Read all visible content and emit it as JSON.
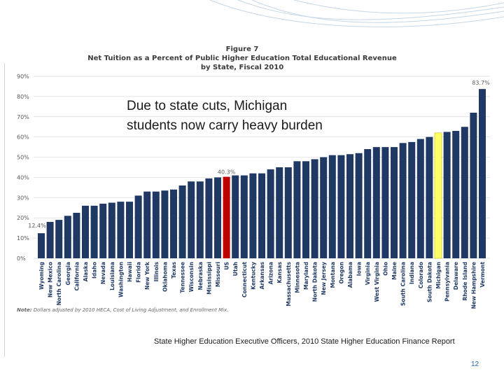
{
  "figure": {
    "label": "Figure 7",
    "title_line1": "Net Tuition as a Percent of Public Higher Education Total Educational Revenue",
    "title_line2": "by State, Fiscal 2010"
  },
  "callout": {
    "line1": "Due to state cuts, Michigan",
    "line2": "students now carry heavy burden"
  },
  "note": {
    "label": "Note:",
    "text": "Dollars adjusted by 2010 HECA, Cost of Living Adjustment, and Enrollment Mix."
  },
  "source": "State Higher Education Executive Officers, 2010 State Higher Education Finance Report",
  "page_number": "12",
  "colors": {
    "bar": "#1f3864",
    "us_bar": "#c00000",
    "michigan_bar": "#ffff66",
    "grid": "#d9d9d9",
    "axis_text": "#595959"
  },
  "chart_data": {
    "type": "bar",
    "title": "Net Tuition as a Percent of Public Higher Education Total Educational Revenue by State, Fiscal 2010",
    "ylim": [
      0,
      90
    ],
    "y_ticks": [
      "0%",
      "10%",
      "20%",
      "30%",
      "40%",
      "50%",
      "60%",
      "70%",
      "80%",
      "90%"
    ],
    "grid": true,
    "categories": [
      "Wyoming",
      "New Mexico",
      "North Carolina",
      "Georgia",
      "California",
      "Alaska",
      "Idaho",
      "Nevada",
      "Louisiana",
      "Washington",
      "Hawaii",
      "Florida",
      "New York",
      "Illinois",
      "Oklahoma",
      "Texas",
      "Tennessee",
      "Wisconsin",
      "Nebraska",
      "Mississippi",
      "Missouri",
      "US",
      "Utah",
      "Connecticut",
      "Kentucky",
      "Arkansas",
      "Arizona",
      "Kansas",
      "Massachusetts",
      "Minnesota",
      "Maryland",
      "North Dakota",
      "New Jersey",
      "Montana",
      "Oregon",
      "Alabama",
      "Iowa",
      "Virginia",
      "West Virginia",
      "Ohio",
      "Maine",
      "South Carolina",
      "Indiana",
      "Colorado",
      "South Dakota",
      "Michigan",
      "Pennsylvania",
      "Delaware",
      "Rhode Island",
      "New Hampshire",
      "Vermont"
    ],
    "values": [
      12.4,
      18,
      19,
      21,
      22.5,
      26,
      26,
      27,
      27.5,
      28,
      28,
      31,
      33,
      33,
      33.5,
      34,
      36,
      38,
      38,
      39.5,
      40,
      40.3,
      41,
      41,
      42,
      42,
      44,
      45,
      45,
      48,
      48,
      49,
      50,
      51,
      51,
      51.5,
      52,
      54,
      55,
      55,
      55,
      57,
      57.5,
      59,
      60,
      62,
      62.5,
      63,
      65,
      72,
      83.7
    ],
    "data_labels": [
      {
        "category": "Wyoming",
        "text": "12.4%"
      },
      {
        "category": "US",
        "text": "40.3%"
      },
      {
        "category": "Vermont",
        "text": "83.7%"
      }
    ],
    "highlights": {
      "US": "red",
      "Michigan": "yellow"
    }
  }
}
